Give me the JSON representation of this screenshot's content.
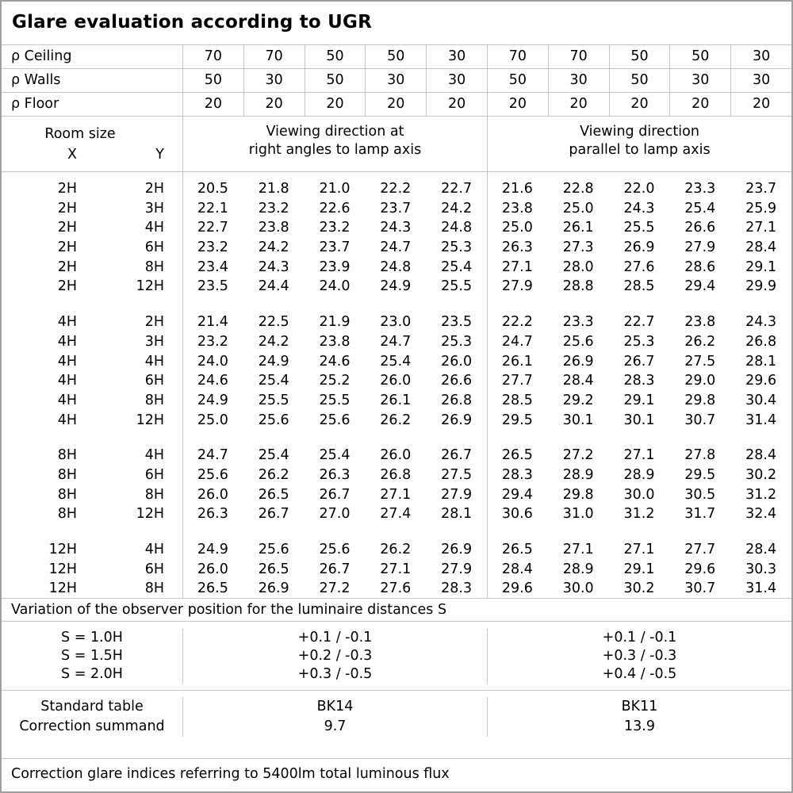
{
  "title": "Glare evaluation according to UGR",
  "reflectance": {
    "rows": [
      {
        "label": "ρ Ceiling",
        "values": [
          "70",
          "70",
          "50",
          "50",
          "30",
          "70",
          "70",
          "50",
          "50",
          "30"
        ]
      },
      {
        "label": "ρ Walls",
        "values": [
          "50",
          "30",
          "50",
          "30",
          "30",
          "50",
          "30",
          "50",
          "30",
          "30"
        ]
      },
      {
        "label": "ρ Floor",
        "values": [
          "20",
          "20",
          "20",
          "20",
          "20",
          "20",
          "20",
          "20",
          "20",
          "20"
        ]
      }
    ]
  },
  "room_header": {
    "title": "Room size",
    "x": "X",
    "y": "Y"
  },
  "viewing": {
    "right_angles": {
      "line1": "Viewing direction at",
      "line2": "right angles to lamp axis"
    },
    "parallel": {
      "line1": "Viewing direction",
      "line2": "parallel to lamp axis"
    }
  },
  "ugr": {
    "groups": [
      {
        "rows": [
          {
            "x": "2H",
            "y": "2H",
            "v": [
              "20.5",
              "21.8",
              "21.0",
              "22.2",
              "22.7",
              "21.6",
              "22.8",
              "22.0",
              "23.3",
              "23.7"
            ]
          },
          {
            "x": "2H",
            "y": "3H",
            "v": [
              "22.1",
              "23.2",
              "22.6",
              "23.7",
              "24.2",
              "23.8",
              "25.0",
              "24.3",
              "25.4",
              "25.9"
            ]
          },
          {
            "x": "2H",
            "y": "4H",
            "v": [
              "22.7",
              "23.8",
              "23.2",
              "24.3",
              "24.8",
              "25.0",
              "26.1",
              "25.5",
              "26.6",
              "27.1"
            ]
          },
          {
            "x": "2H",
            "y": "6H",
            "v": [
              "23.2",
              "24.2",
              "23.7",
              "24.7",
              "25.3",
              "26.3",
              "27.3",
              "26.9",
              "27.9",
              "28.4"
            ]
          },
          {
            "x": "2H",
            "y": "8H",
            "v": [
              "23.4",
              "24.3",
              "23.9",
              "24.8",
              "25.4",
              "27.1",
              "28.0",
              "27.6",
              "28.6",
              "29.1"
            ]
          },
          {
            "x": "2H",
            "y": "12H",
            "v": [
              "23.5",
              "24.4",
              "24.0",
              "24.9",
              "25.5",
              "27.9",
              "28.8",
              "28.5",
              "29.4",
              "29.9"
            ]
          }
        ]
      },
      {
        "rows": [
          {
            "x": "4H",
            "y": "2H",
            "v": [
              "21.4",
              "22.5",
              "21.9",
              "23.0",
              "23.5",
              "22.2",
              "23.3",
              "22.7",
              "23.8",
              "24.3"
            ]
          },
          {
            "x": "4H",
            "y": "3H",
            "v": [
              "23.2",
              "24.2",
              "23.8",
              "24.7",
              "25.3",
              "24.7",
              "25.6",
              "25.3",
              "26.2",
              "26.8"
            ]
          },
          {
            "x": "4H",
            "y": "4H",
            "v": [
              "24.0",
              "24.9",
              "24.6",
              "25.4",
              "26.0",
              "26.1",
              "26.9",
              "26.7",
              "27.5",
              "28.1"
            ]
          },
          {
            "x": "4H",
            "y": "6H",
            "v": [
              "24.6",
              "25.4",
              "25.2",
              "26.0",
              "26.6",
              "27.7",
              "28.4",
              "28.3",
              "29.0",
              "29.6"
            ]
          },
          {
            "x": "4H",
            "y": "8H",
            "v": [
              "24.9",
              "25.5",
              "25.5",
              "26.1",
              "26.8",
              "28.5",
              "29.2",
              "29.1",
              "29.8",
              "30.4"
            ]
          },
          {
            "x": "4H",
            "y": "12H",
            "v": [
              "25.0",
              "25.6",
              "25.6",
              "26.2",
              "26.9",
              "29.5",
              "30.1",
              "30.1",
              "30.7",
              "31.4"
            ]
          }
        ]
      },
      {
        "rows": [
          {
            "x": "8H",
            "y": "4H",
            "v": [
              "24.7",
              "25.4",
              "25.4",
              "26.0",
              "26.7",
              "26.5",
              "27.2",
              "27.1",
              "27.8",
              "28.4"
            ]
          },
          {
            "x": "8H",
            "y": "6H",
            "v": [
              "25.6",
              "26.2",
              "26.3",
              "26.8",
              "27.5",
              "28.3",
              "28.9",
              "28.9",
              "29.5",
              "30.2"
            ]
          },
          {
            "x": "8H",
            "y": "8H",
            "v": [
              "26.0",
              "26.5",
              "26.7",
              "27.1",
              "27.9",
              "29.4",
              "29.8",
              "30.0",
              "30.5",
              "31.2"
            ]
          },
          {
            "x": "8H",
            "y": "12H",
            "v": [
              "26.3",
              "26.7",
              "27.0",
              "27.4",
              "28.1",
              "30.6",
              "31.0",
              "31.2",
              "31.7",
              "32.4"
            ]
          }
        ]
      },
      {
        "rows": [
          {
            "x": "12H",
            "y": "4H",
            "v": [
              "24.9",
              "25.6",
              "25.6",
              "26.2",
              "26.9",
              "26.5",
              "27.1",
              "27.1",
              "27.7",
              "28.4"
            ]
          },
          {
            "x": "12H",
            "y": "6H",
            "v": [
              "26.0",
              "26.5",
              "26.7",
              "27.1",
              "27.9",
              "28.4",
              "28.9",
              "29.1",
              "29.6",
              "30.3"
            ]
          },
          {
            "x": "12H",
            "y": "8H",
            "v": [
              "26.5",
              "26.9",
              "27.2",
              "27.6",
              "28.3",
              "29.6",
              "30.0",
              "30.2",
              "30.7",
              "31.4"
            ]
          }
        ]
      }
    ]
  },
  "variation": {
    "note": "Variation of the observer position for the luminaire distances S",
    "rows": [
      {
        "label": "S = 1.0H",
        "right_angles": "+0.1 / -0.1",
        "parallel": "+0.1 / -0.1"
      },
      {
        "label": "S = 1.5H",
        "right_angles": "+0.2 / -0.3",
        "parallel": "+0.3 / -0.3"
      },
      {
        "label": "S = 2.0H",
        "right_angles": "+0.3 / -0.5",
        "parallel": "+0.4 / -0.5"
      }
    ]
  },
  "summary": {
    "rows": [
      {
        "label": "Standard table",
        "right_angles": "BK14",
        "parallel": "BK11"
      },
      {
        "label": "Correction summand",
        "right_angles": "9.7",
        "parallel": "13.9"
      }
    ]
  },
  "footer": "Correction glare indices referring to 5400lm total luminous flux",
  "colors": {
    "outer_border": "#9f9f9f",
    "inner_border": "#c6c6c6",
    "text": "#000000",
    "background": "#ffffff"
  }
}
